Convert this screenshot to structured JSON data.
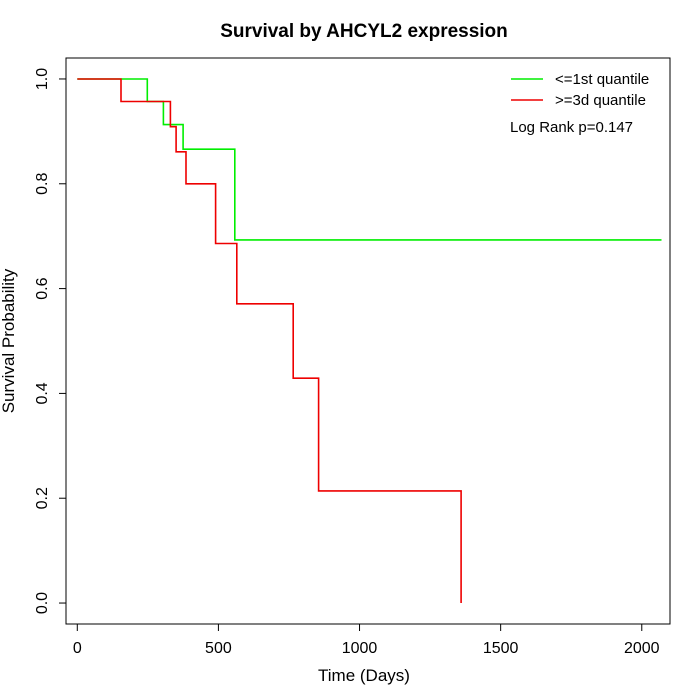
{
  "chart_data": {
    "type": "line",
    "title": "Survival by AHCYL2 expression",
    "xlabel": "Time (Days)",
    "ylabel": "Survival Probability",
    "xlim": [
      -40,
      2100
    ],
    "ylim": [
      -0.04,
      1.04
    ],
    "xticks": [
      0,
      500,
      1000,
      1500,
      2000
    ],
    "yticks": [
      0.0,
      0.2,
      0.4,
      0.6,
      0.8,
      1.0
    ],
    "xtick_labels": [
      "0",
      "500",
      "1000",
      "1500",
      "2000"
    ],
    "ytick_labels": [
      "0.0",
      "0.2",
      "0.4",
      "0.6",
      "0.8",
      "1.0"
    ],
    "grid": false,
    "legend_position": "top-right",
    "annotation": "Log Rank p=0.147",
    "series": [
      {
        "name": "<=1st quantile",
        "color": "#00ee00",
        "step": true,
        "x": [
          0,
          248,
          248,
          305,
          305,
          375,
          375,
          558,
          558,
          2070
        ],
        "y": [
          1.0,
          1.0,
          0.957,
          0.957,
          0.913,
          0.913,
          0.866,
          0.866,
          0.693,
          0.693
        ]
      },
      {
        "name": ">=3d quantile",
        "color": "#ee0000",
        "step": true,
        "x": [
          0,
          155,
          155,
          330,
          330,
          350,
          350,
          385,
          385,
          490,
          490,
          565,
          565,
          765,
          765,
          855,
          855,
          1360,
          1360
        ],
        "y": [
          1.0,
          1.0,
          0.957,
          0.957,
          0.909,
          0.909,
          0.861,
          0.861,
          0.8,
          0.8,
          0.686,
          0.686,
          0.571,
          0.571,
          0.429,
          0.429,
          0.214,
          0.214,
          0.0
        ]
      }
    ]
  }
}
